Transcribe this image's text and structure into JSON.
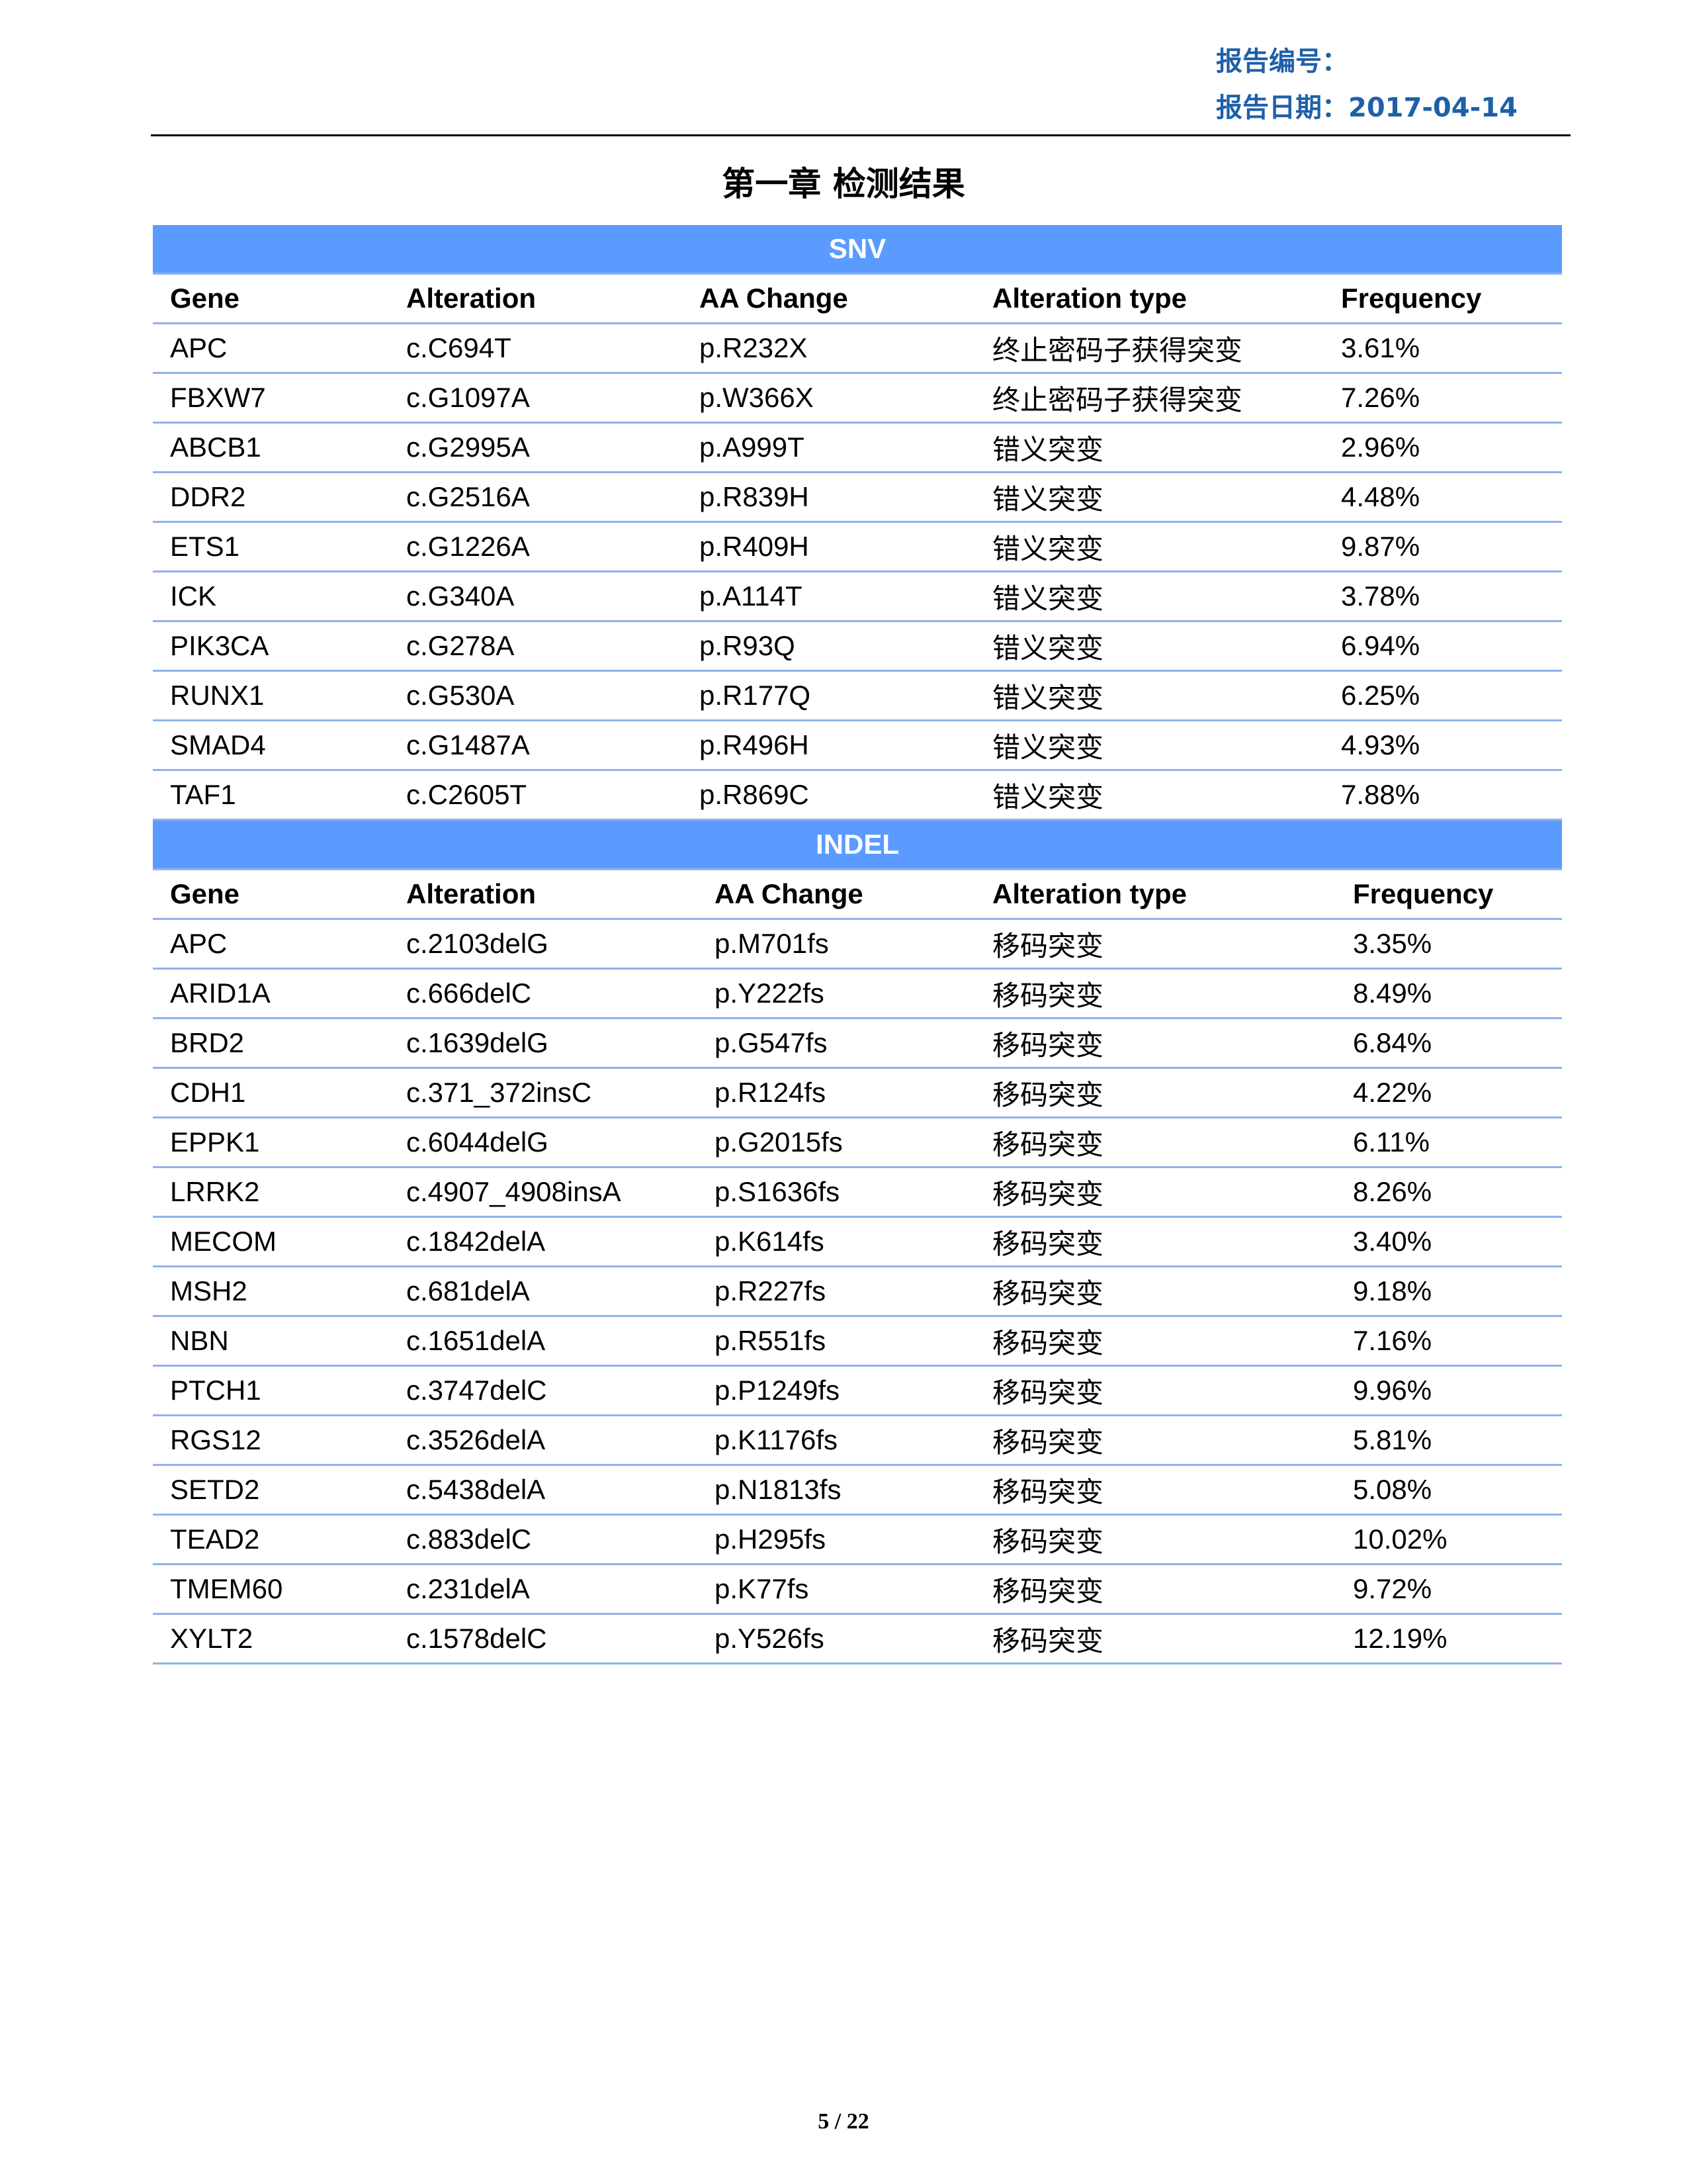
{
  "header": {
    "report_no_label": "报告编号：",
    "report_date_label": "报告日期：",
    "report_date": "2017-04-14"
  },
  "chapter_title": "第一章  检测结果",
  "snv": {
    "band_title": "SNV",
    "columns": [
      "Gene",
      "Alteration",
      "AA Change",
      "Alteration type",
      "Frequency"
    ],
    "rows": [
      [
        "APC",
        "c.C694T",
        "p.R232X",
        "终止密码子获得突变",
        "3.61%"
      ],
      [
        "FBXW7",
        "c.G1097A",
        "p.W366X",
        "终止密码子获得突变",
        "7.26%"
      ],
      [
        "ABCB1",
        "c.G2995A",
        "p.A999T",
        "错义突变",
        "2.96%"
      ],
      [
        "DDR2",
        "c.G2516A",
        "p.R839H",
        "错义突变",
        "4.48%"
      ],
      [
        "ETS1",
        "c.G1226A",
        "p.R409H",
        "错义突变",
        "9.87%"
      ],
      [
        "ICK",
        "c.G340A",
        "p.A114T",
        "错义突变",
        "3.78%"
      ],
      [
        "PIK3CA",
        "c.G278A",
        "p.R93Q",
        "错义突变",
        "6.94%"
      ],
      [
        "RUNX1",
        "c.G530A",
        "p.R177Q",
        "错义突变",
        "6.25%"
      ],
      [
        "SMAD4",
        "c.G1487A",
        "p.R496H",
        "错义突变",
        "4.93%"
      ],
      [
        "TAF1",
        "c.C2605T",
        "p.R869C",
        "错义突变",
        "7.88%"
      ]
    ]
  },
  "indel": {
    "band_title": "INDEL",
    "columns": [
      "Gene",
      "Alteration",
      "AA Change",
      "Alteration type",
      "Frequency"
    ],
    "rows": [
      [
        "APC",
        "c.2103delG",
        "p.M701fs",
        "移码突变",
        "3.35%"
      ],
      [
        "ARID1A",
        "c.666delC",
        "p.Y222fs",
        "移码突变",
        "8.49%"
      ],
      [
        "BRD2",
        "c.1639delG",
        "p.G547fs",
        "移码突变",
        "6.84%"
      ],
      [
        "CDH1",
        "c.371_372insC",
        "p.R124fs",
        "移码突变",
        "4.22%"
      ],
      [
        "EPPK1",
        "c.6044delG",
        "p.G2015fs",
        "移码突变",
        "6.11%"
      ],
      [
        "LRRK2",
        "c.4907_4908insA",
        "p.S1636fs",
        "移码突变",
        "8.26%"
      ],
      [
        "MECOM",
        "c.1842delA",
        "p.K614fs",
        "移码突变",
        "3.40%"
      ],
      [
        "MSH2",
        "c.681delA",
        "p.R227fs",
        "移码突变",
        "9.18%"
      ],
      [
        "NBN",
        "c.1651delA",
        "p.R551fs",
        "移码突变",
        "7.16%"
      ],
      [
        "PTCH1",
        "c.3747delC",
        "p.P1249fs",
        "移码突变",
        "9.96%"
      ],
      [
        "RGS12",
        "c.3526delA",
        "p.K1176fs",
        "移码突变",
        "5.81%"
      ],
      [
        "SETD2",
        "c.5438delA",
        "p.N1813fs",
        "移码突变",
        "5.08%"
      ],
      [
        "TEAD2",
        "c.883delC",
        "p.H295fs",
        "移码突变",
        "10.02%"
      ],
      [
        "TMEM60",
        "c.231delA",
        "p.K77fs",
        "移码突变",
        "9.72%"
      ],
      [
        "XYLT2",
        "c.1578delC",
        "p.Y526fs",
        "移码突变",
        "12.19%"
      ]
    ]
  },
  "footer": {
    "page_number": "5 / 22"
  },
  "colors": {
    "header_text": "#1f5fa8",
    "band_background": "#5b9bff",
    "row_rule": "#8fb3e8"
  }
}
